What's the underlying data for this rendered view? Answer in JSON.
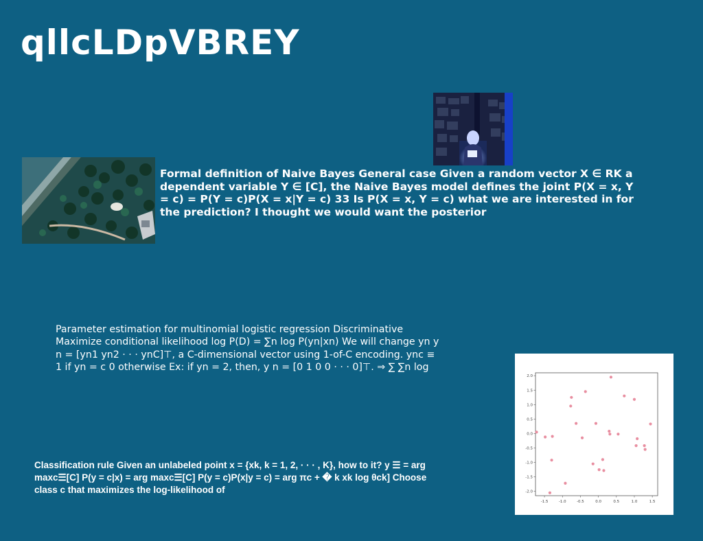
{
  "title": "qllcLDpVBREY",
  "images": {
    "person": {
      "name": "person-photo"
    },
    "aerial": {
      "name": "aerial-photo"
    }
  },
  "paragraphs": {
    "p1": "Formal definition of Naive Bayes General case Given a random vector X ∈ RK a dependent variable Y ∈ [C], the Naive Bayes model defines the joint P(X = x, Y = c) = P(Y = c)P(X = x|Y = c) 33 Is P(X = x, Y = c) what we are interested in for the prediction? I thought we would want the posterior",
    "p2": "Parameter estimation for multinomial logistic regression Discriminative Maximize conditional likelihood log P(D) = ∑n log P(yn|xn) We will change yn y n = [yn1 yn2 · · · ynC]⊤, a C-dimensional vector using 1-of-C encoding. ync ≡ 1 if yn = c 0 otherwise Ex: if yn = 2, then, y n = [0 1 0 0 · · · 0]⊤. ⇒ ∑ ∑n log",
    "p3": "Classification rule Given an unlabeled point x = {xk, k = 1, 2, · · · , K}, how to it? y ☰ = arg maxc☰[C] P(y = c|x) = arg maxc☰[C] P(y = c)P(x|y = c) = arg πc + � k xk log θck] Choose class c that maximizes the log-likelihood of"
  },
  "chart_data": {
    "type": "scatter",
    "xlim": [
      -1.75,
      1.65
    ],
    "ylim": [
      -2.15,
      2.1
    ],
    "xticks": [
      "-1.5",
      "-1.0",
      "-0.5",
      "0.0",
      "0.5",
      "1.0",
      "1.5"
    ],
    "yticks": [
      "2.0",
      "1.5",
      "1.0",
      "0.5",
      "0.0",
      "-0.5",
      "-1.0",
      "-1.5",
      "-2.0"
    ],
    "point_color": "#e88ea0",
    "points": [
      [
        -1.72,
        0.05
      ],
      [
        -1.48,
        -0.12
      ],
      [
        -1.28,
        -0.1
      ],
      [
        -1.3,
        -0.92
      ],
      [
        -1.35,
        -2.05
      ],
      [
        -0.92,
        -1.72
      ],
      [
        -0.75,
        1.25
      ],
      [
        -0.77,
        0.95
      ],
      [
        -0.62,
        0.35
      ],
      [
        -0.45,
        -0.15
      ],
      [
        -0.36,
        1.45
      ],
      [
        -0.15,
        -1.05
      ],
      [
        -0.07,
        0.35
      ],
      [
        0.02,
        -1.25
      ],
      [
        0.12,
        -0.9
      ],
      [
        0.15,
        -1.28
      ],
      [
        0.3,
        0.08
      ],
      [
        0.32,
        -0.02
      ],
      [
        0.35,
        1.95
      ],
      [
        0.55,
        -0.02
      ],
      [
        0.72,
        1.3
      ],
      [
        1.0,
        1.18
      ],
      [
        1.05,
        -0.42
      ],
      [
        1.08,
        -0.18
      ],
      [
        1.28,
        -0.42
      ],
      [
        1.3,
        -0.55
      ],
      [
        1.45,
        0.33
      ]
    ]
  }
}
